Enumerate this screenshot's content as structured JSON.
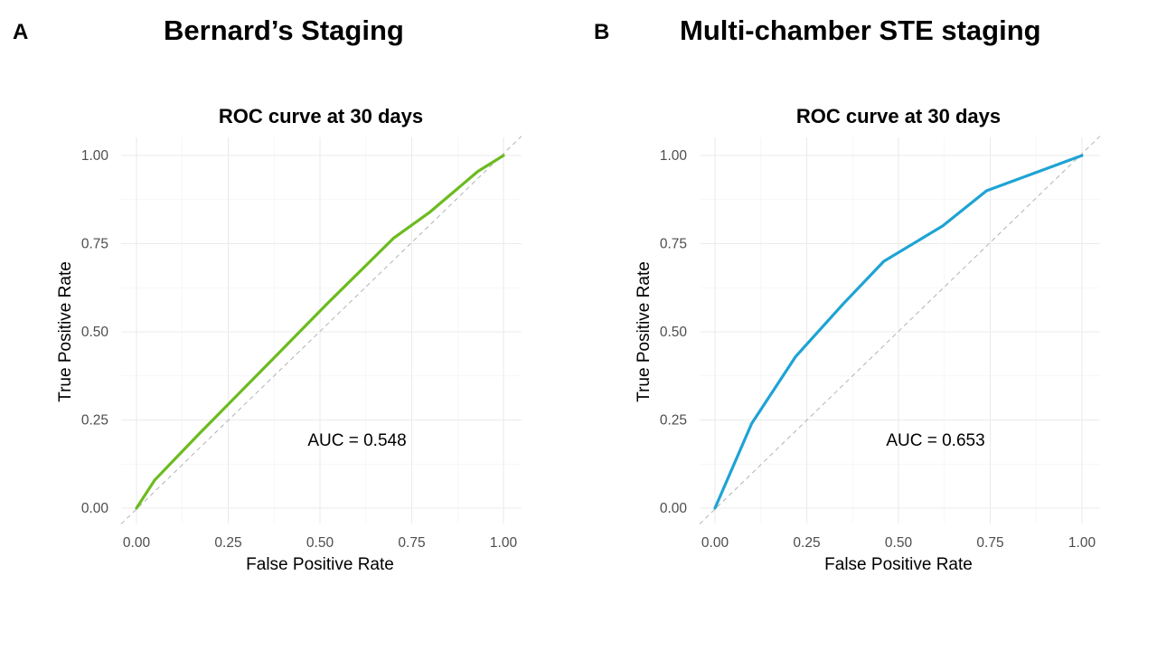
{
  "panels": {
    "a": {
      "letter": "A",
      "heading": "Bernard’s Staging"
    },
    "b": {
      "letter": "B",
      "heading": "Multi-chamber STE staging"
    }
  },
  "chart_data": [
    {
      "type": "line",
      "title": "ROC curve at 30 days",
      "xlabel": "False Positive Rate",
      "ylabel": "True Positive Rate",
      "xlim": [
        0,
        1
      ],
      "ylim": [
        0,
        1
      ],
      "x_ticks": [
        "0.00",
        "0.25",
        "0.50",
        "0.75",
        "1.00"
      ],
      "y_ticks": [
        "0.00",
        "0.25",
        "0.50",
        "0.75",
        "1.00"
      ],
      "grid": true,
      "reference_line": "diagonal",
      "annotation": "AUC = 0.548",
      "auc": 0.548,
      "color": "#6cbb1f",
      "series": [
        {
          "name": "ROC",
          "x": [
            0,
            0.05,
            0.17,
            0.35,
            0.52,
            0.7,
            0.8,
            0.93,
            1.0
          ],
          "y": [
            0,
            0.08,
            0.21,
            0.4,
            0.58,
            0.765,
            0.84,
            0.955,
            1.0
          ]
        }
      ]
    },
    {
      "type": "line",
      "title": "ROC curve at 30 days",
      "xlabel": "False Positive Rate",
      "ylabel": "True Positive Rate",
      "xlim": [
        0,
        1
      ],
      "ylim": [
        0,
        1
      ],
      "x_ticks": [
        "0.00",
        "0.25",
        "0.50",
        "0.75",
        "1.00"
      ],
      "y_ticks": [
        "0.00",
        "0.25",
        "0.50",
        "0.75",
        "1.00"
      ],
      "grid": true,
      "reference_line": "diagonal",
      "annotation": "AUC = 0.653",
      "auc": 0.653,
      "color": "#1ea3d4",
      "series": [
        {
          "name": "ROC",
          "x": [
            0,
            0.1,
            0.22,
            0.35,
            0.46,
            0.62,
            0.74,
            0.87,
            1.0
          ],
          "y": [
            0,
            0.24,
            0.43,
            0.58,
            0.7,
            0.8,
            0.9,
            0.95,
            1.0
          ]
        }
      ]
    }
  ]
}
